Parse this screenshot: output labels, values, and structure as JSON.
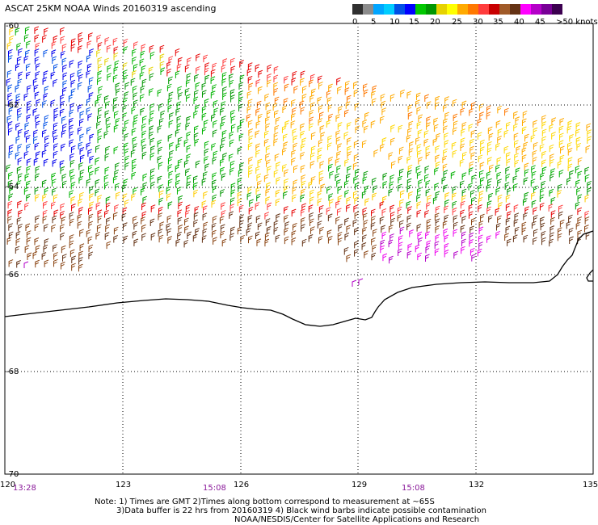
{
  "title": "ASCAT 25KM NOAA Winds 20160319 ascending",
  "legend": {
    "ticks": [
      "0",
      "5",
      "10",
      "15",
      "20",
      "25",
      "30",
      "35",
      "40",
      "45",
      ">50 knots"
    ],
    "colors": [
      "#303030",
      "#8c8c8c",
      "#00a5ff",
      "#00cdff",
      "#0050e6",
      "#0000ff",
      "#00c800",
      "#009600",
      "#e6d200",
      "#ffff00",
      "#ffaa00",
      "#ff7800",
      "#ff3c3c",
      "#c80000",
      "#a05a28",
      "#643214",
      "#ff00ff",
      "#b400c8",
      "#780096",
      "#3c0050"
    ]
  },
  "lat_labels": [
    "-60",
    "-62",
    "-64",
    "-66",
    "-68",
    "-70"
  ],
  "lon_labels": [
    "120",
    "123",
    "126",
    "129",
    "132",
    "135"
  ],
  "time_labels": [
    "13:28",
    "15:08",
    "15:08"
  ],
  "notes": {
    "line1": "Note: 1) Times are GMT 2)Times along bottom correspond to measurement at ~65S",
    "line2": "3)Data buffer is 22 hrs from 20160319 4) Black wind barbs indicate possible contamination",
    "line3": "NOAA/NESDIS/Center for Satellite Applications and Research"
  }
}
